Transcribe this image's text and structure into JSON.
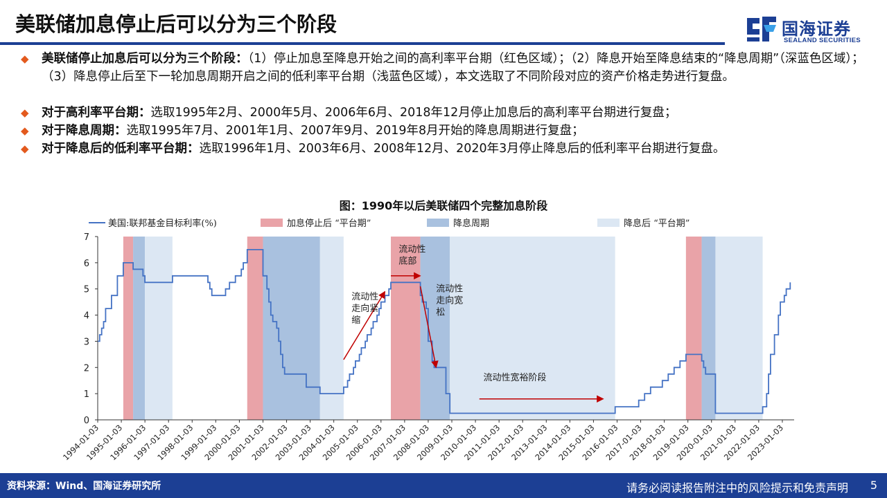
{
  "header": {
    "title": "美联储加息停止后可以分为三个阶段",
    "logo_cn": "国海证券",
    "logo_en": "SEALAND SECURITIES"
  },
  "bullets": [
    {
      "bold": "美联储停止加息后可以分为三个阶段：",
      "text": "（1）停止加息至降息开始之间的高利率平台期（红色区域）；（2）降息开始至降息结束的“降息周期”（深蓝色区域）；  （3）降息停止后至下一轮加息周期开启之间的低利率平台期（浅蓝色区域），本文选取了不同阶段对应的资产价格走势进行复盘。"
    },
    {
      "bold": "对于高利率平台期：",
      "text": "选取1995年2月、2000年5月、2006年6月、2018年12月停止加息后的高利率平台期进行复盘；"
    },
    {
      "bold": "对于降息周期：",
      "text": "选取1995年7月、2001年1月、2007年9月、2019年8月开始的降息周期进行复盘；"
    },
    {
      "bold": "对于降息后的低利率平台期：",
      "text": "选取1996年1月、2003年6月、2008年12月、2020年3月停止降息后的低利率平台期进行复盘。"
    }
  ],
  "chart_title": "图：1990年以后美联储四个完整加息阶段",
  "chart_data": {
    "type": "line",
    "ylim": [
      0,
      7
    ],
    "yticks": [
      0,
      1,
      2,
      3,
      4,
      5,
      6,
      7
    ],
    "xticks": [
      "1994-01-03",
      "1995-01-03",
      "1996-01-03",
      "1997-01-03",
      "1998-01-03",
      "1999-01-03",
      "2000-01-03",
      "2001-01-03",
      "2002-01-03",
      "2003-01-03",
      "2004-01-03",
      "2005-01-03",
      "2006-01-03",
      "2007-01-03",
      "2008-01-03",
      "2009-01-03",
      "2010-01-03",
      "2011-01-03",
      "2012-01-03",
      "2013-01-03",
      "2014-01-03",
      "2015-01-03",
      "2016-01-03",
      "2017-01-03",
      "2018-01-03",
      "2019-01-03",
      "2020-01-03",
      "2021-01-03",
      "2022-01-03",
      "2023-01-03"
    ],
    "legend": [
      {
        "label": "美国:联邦基金目标利率(%)",
        "kind": "line",
        "color": "#4472c4"
      },
      {
        "label": "加息停止后 “平台期”",
        "kind": "box",
        "color": "#e9a3a8"
      },
      {
        "label": "降息周期",
        "kind": "box",
        "color": "#a9c1df"
      },
      {
        "label": "降息后 “平台期”",
        "kind": "box",
        "color": "#dce7f3"
      }
    ],
    "regions": [
      {
        "type": "plateau",
        "from": "1995-02",
        "to": "1995-07",
        "color": "#e9a3a8"
      },
      {
        "type": "cut",
        "from": "1995-07",
        "to": "1996-01",
        "color": "#a9c1df"
      },
      {
        "type": "low",
        "from": "1996-01",
        "to": "1997-03",
        "color": "#dce7f3"
      },
      {
        "type": "plateau",
        "from": "2000-05",
        "to": "2001-01",
        "color": "#e9a3a8"
      },
      {
        "type": "cut",
        "from": "2001-01",
        "to": "2003-06",
        "color": "#a9c1df"
      },
      {
        "type": "low",
        "from": "2003-06",
        "to": "2004-06",
        "color": "#dce7f3"
      },
      {
        "type": "plateau",
        "from": "2006-06",
        "to": "2007-09",
        "color": "#e9a3a8"
      },
      {
        "type": "cut",
        "from": "2007-09",
        "to": "2008-12",
        "color": "#a9c1df"
      },
      {
        "type": "low",
        "from": "2008-12",
        "to": "2015-12",
        "color": "#dce7f3"
      },
      {
        "type": "plateau",
        "from": "2018-12",
        "to": "2019-08",
        "color": "#e9a3a8"
      },
      {
        "type": "cut",
        "from": "2019-08",
        "to": "2020-03",
        "color": "#a9c1df"
      },
      {
        "type": "low",
        "from": "2020-03",
        "to": "2022-03",
        "color": "#dce7f3"
      }
    ],
    "series": [
      {
        "name": "美国:联邦基金目标利率(%)",
        "color": "#4472c4",
        "points": [
          [
            "1994-01",
            3.0
          ],
          [
            "1994-02",
            3.25
          ],
          [
            "1994-03",
            3.5
          ],
          [
            "1994-04",
            3.75
          ],
          [
            "1994-05",
            4.25
          ],
          [
            "1994-08",
            4.75
          ],
          [
            "1994-11",
            5.5
          ],
          [
            "1995-02",
            6.0
          ],
          [
            "1995-07",
            5.75
          ],
          [
            "1995-12",
            5.5
          ],
          [
            "1996-01",
            5.25
          ],
          [
            "1997-03",
            5.5
          ],
          [
            "1998-09",
            5.25
          ],
          [
            "1998-10",
            5.0
          ],
          [
            "1998-11",
            4.75
          ],
          [
            "1999-06",
            5.0
          ],
          [
            "1999-08",
            5.25
          ],
          [
            "1999-11",
            5.5
          ],
          [
            "2000-02",
            5.75
          ],
          [
            "2000-03",
            6.0
          ],
          [
            "2000-05",
            6.5
          ],
          [
            "2001-01",
            6.0
          ],
          [
            "2001-01",
            5.5
          ],
          [
            "2001-03",
            5.0
          ],
          [
            "2001-04",
            4.5
          ],
          [
            "2001-05",
            4.0
          ],
          [
            "2001-06",
            3.75
          ],
          [
            "2001-08",
            3.5
          ],
          [
            "2001-09",
            3.0
          ],
          [
            "2001-10",
            2.5
          ],
          [
            "2001-11",
            2.0
          ],
          [
            "2001-12",
            1.75
          ],
          [
            "2002-11",
            1.25
          ],
          [
            "2003-06",
            1.0
          ],
          [
            "2004-06",
            1.25
          ],
          [
            "2004-08",
            1.5
          ],
          [
            "2004-09",
            1.75
          ],
          [
            "2004-11",
            2.0
          ],
          [
            "2004-12",
            2.25
          ],
          [
            "2005-02",
            2.5
          ],
          [
            "2005-03",
            2.75
          ],
          [
            "2005-05",
            3.0
          ],
          [
            "2005-06",
            3.25
          ],
          [
            "2005-08",
            3.5
          ],
          [
            "2005-09",
            3.75
          ],
          [
            "2005-11",
            4.0
          ],
          [
            "2005-12",
            4.25
          ],
          [
            "2006-01",
            4.5
          ],
          [
            "2006-03",
            4.75
          ],
          [
            "2006-05",
            5.0
          ],
          [
            "2006-06",
            5.25
          ],
          [
            "2007-09",
            4.75
          ],
          [
            "2007-10",
            4.5
          ],
          [
            "2007-12",
            4.25
          ],
          [
            "2008-01",
            3.5
          ],
          [
            "2008-01",
            3.0
          ],
          [
            "2008-03",
            2.25
          ],
          [
            "2008-04",
            2.0
          ],
          [
            "2008-10",
            1.5
          ],
          [
            "2008-10",
            1.0
          ],
          [
            "2008-12",
            0.25
          ],
          [
            "2015-12",
            0.5
          ],
          [
            "2016-12",
            0.75
          ],
          [
            "2017-03",
            1.0
          ],
          [
            "2017-06",
            1.25
          ],
          [
            "2017-12",
            1.5
          ],
          [
            "2018-03",
            1.75
          ],
          [
            "2018-06",
            2.0
          ],
          [
            "2018-09",
            2.25
          ],
          [
            "2018-12",
            2.5
          ],
          [
            "2019-08",
            2.25
          ],
          [
            "2019-09",
            2.0
          ],
          [
            "2019-10",
            1.75
          ],
          [
            "2020-03",
            1.25
          ],
          [
            "2020-03",
            0.25
          ],
          [
            "2022-03",
            0.5
          ],
          [
            "2022-05",
            1.0
          ],
          [
            "2022-06",
            1.75
          ],
          [
            "2022-07",
            2.5
          ],
          [
            "2022-09",
            3.25
          ],
          [
            "2022-11",
            4.0
          ],
          [
            "2022-12",
            4.5
          ],
          [
            "2023-02",
            4.75
          ],
          [
            "2023-03",
            5.0
          ],
          [
            "2023-05",
            5.25
          ],
          [
            "2023-05",
            5.25
          ]
        ]
      }
    ],
    "annotations": [
      {
        "text": "流动性\n走向紧\n缩",
        "x": "2004-10",
        "y": 4.6
      },
      {
        "text": "流动性\n底部",
        "x": "2006-10",
        "y": 6.4
      },
      {
        "text": "流动性\n走向宽\n松",
        "x": "2008-05",
        "y": 4.9
      },
      {
        "text": "流动性宽裕阶段",
        "x": "2010-05",
        "y": 1.5
      }
    ],
    "arrows": [
      {
        "from": [
          "2004-06",
          2.3
        ],
        "to": [
          "2006-03",
          4.9
        ]
      },
      {
        "from": [
          "2006-06",
          5.5
        ],
        "to": [
          "2007-09",
          5.5
        ]
      },
      {
        "from": [
          "2007-09",
          5.1
        ],
        "to": [
          "2008-05",
          2.0
        ]
      },
      {
        "from": [
          "2010-03",
          0.8
        ],
        "to": [
          "2015-06",
          0.8
        ]
      }
    ]
  },
  "footer": {
    "source": "资料来源：Wind、国海证券研究所",
    "disclaimer": "请务必阅读报告附注中的风险提示和免责声明",
    "page": "5"
  }
}
